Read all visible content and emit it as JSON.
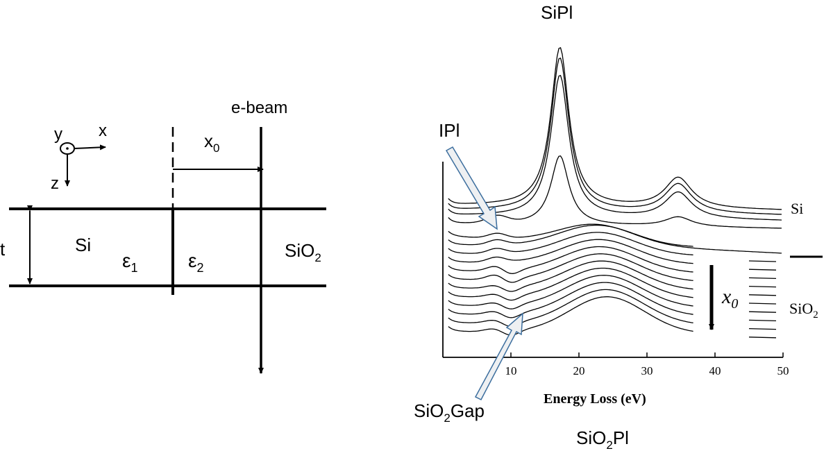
{
  "diagram": {
    "axes": {
      "x": "x",
      "y": "y",
      "z": "z"
    },
    "beam_label": "e-beam",
    "offset_label": "x",
    "offset_subscript": "0",
    "thickness_label": "t",
    "left_material": "Si",
    "right_material": "SiO",
    "right_material_sub": "2",
    "eps_symbol": "ε",
    "eps1_sub": "1",
    "eps2_sub": "2"
  },
  "chart_data": {
    "type": "line",
    "title": "",
    "xlabel": "Energy Loss (eV)",
    "ylabel": "",
    "xlim": [
      0,
      50
    ],
    "x_ticks": [
      "10",
      "20",
      "30",
      "40",
      "50"
    ],
    "tick_values": [
      10,
      20,
      30,
      40,
      50
    ],
    "series_description_note": "",
    "annotations": {
      "si_plasmon": "SiPl",
      "interface_plasmon": "IPl",
      "sio2_gap": "SiO",
      "sio2_gap_sub": "2",
      "sio2_gap_suffix": "Gap",
      "sio2_plasmon": "SiO",
      "sio2_plasmon_sub": "2",
      "sio2_plasmon_suffix": "Pl",
      "si_region": "Si",
      "sio2_region": "SiO",
      "sio2_region_sub": "2",
      "x0_arrow": "x",
      "x0_arrow_sub": "0"
    },
    "peaks_ev": {
      "si_plasmon": 17,
      "si_second": 34.5,
      "sio2_plasmon": 23,
      "interface": 8,
      "gap": 11
    }
  }
}
